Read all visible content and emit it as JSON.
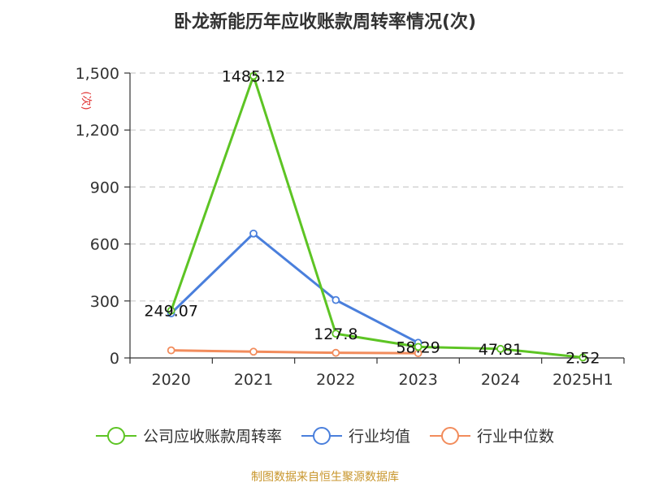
{
  "chart_data": {
    "type": "line",
    "title": "卧龙新能历年应收账款周转率情况(次)",
    "ylabel": "(次)",
    "xlabel": "",
    "categories": [
      "2020",
      "2021",
      "2022",
      "2023",
      "2024",
      "2025H1"
    ],
    "ylim": [
      0,
      1500
    ],
    "yticks": [
      0,
      300,
      600,
      900,
      1200,
      1500
    ],
    "ytick_labels": [
      "0",
      "300",
      "600",
      "900",
      "1,200",
      "1,500"
    ],
    "grid": true,
    "legend_position": "bottom",
    "series": [
      {
        "name": "公司应收账款周转率",
        "color": "#5dc424",
        "values": [
          249.07,
          1485.12,
          127.8,
          58.29,
          47.81,
          2.52
        ],
        "labels": [
          "249.07",
          "1485.12",
          "127.8",
          "58.29",
          "47.81",
          "2.52"
        ]
      },
      {
        "name": "行业均值",
        "color": "#4a7fdc",
        "values": [
          235,
          655,
          305,
          80,
          null,
          null
        ]
      },
      {
        "name": "行业中位数",
        "color": "#f28c5c",
        "values": [
          40,
          33,
          27,
          25,
          null,
          null
        ]
      }
    ]
  },
  "source": "制图数据来自恒生聚源数据库"
}
